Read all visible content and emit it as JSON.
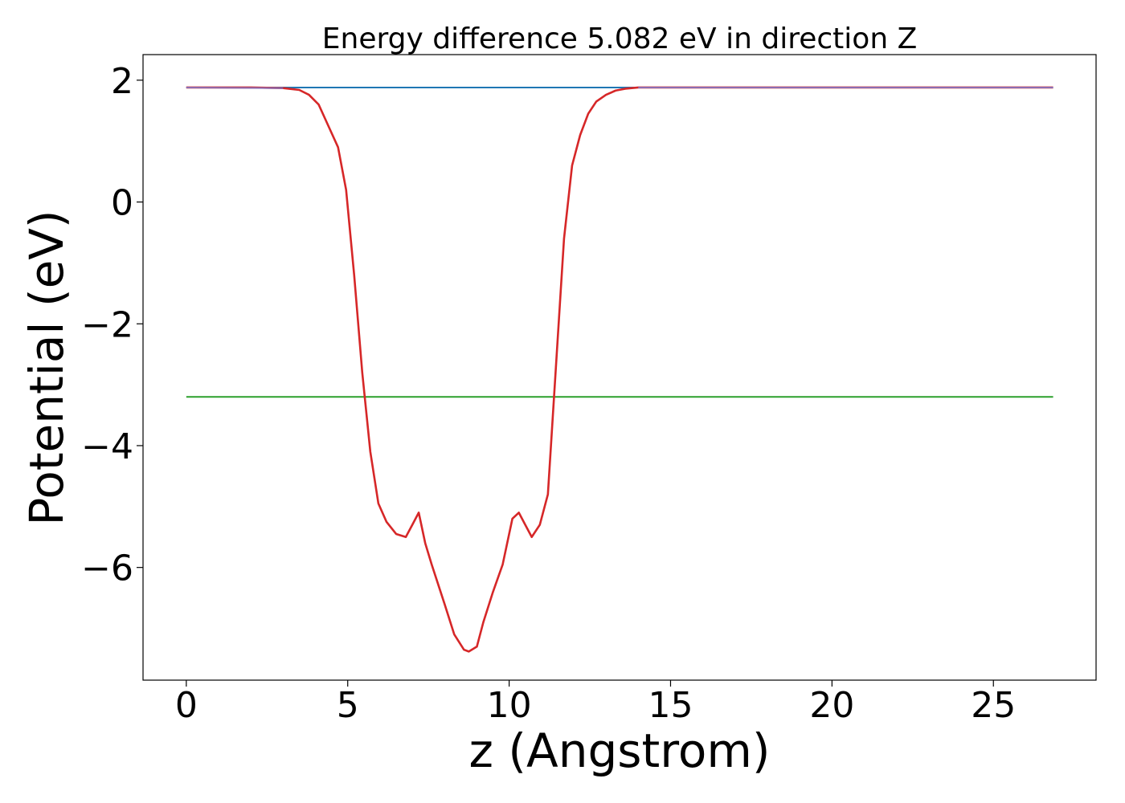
{
  "chart_data": {
    "type": "line",
    "title": "Energy difference 5.082 eV in direction Z",
    "xlabel": "z (Angstrom)",
    "ylabel": "Potential (eV)",
    "xlim": [
      -1.34,
      28.18
    ],
    "ylim": [
      -7.85,
      2.42
    ],
    "xticks": [
      0,
      5,
      10,
      15,
      20,
      25
    ],
    "xtick_labels": [
      "0",
      "5",
      "10",
      "15",
      "20",
      "25"
    ],
    "yticks": [
      2,
      0,
      -2,
      -4,
      -6
    ],
    "ytick_labels": [
      "2",
      "0",
      "−2",
      "−4",
      "−6"
    ],
    "grid": false,
    "series": [
      {
        "kind": "hline",
        "color": "#1f77b4",
        "x": [
          0,
          26.85
        ],
        "y": [
          1.88,
          1.88
        ]
      },
      {
        "kind": "hline",
        "color": "#2ca02c",
        "x": [
          0,
          26.85
        ],
        "y": [
          -3.2,
          -3.2
        ]
      },
      {
        "kind": "curve",
        "color": "#d62728",
        "x": [
          0,
          1,
          2,
          3,
          3.5,
          3.8,
          4.1,
          4.4,
          4.7,
          4.95,
          5.2,
          5.45,
          5.7,
          5.95,
          6.2,
          6.5,
          6.8,
          7.0,
          7.2,
          7.4,
          7.6,
          8.0,
          8.3,
          8.6,
          8.75,
          9.0,
          9.2,
          9.5,
          9.8,
          10.1,
          10.3,
          10.5,
          10.7,
          10.95,
          11.2,
          11.45,
          11.7,
          11.95,
          12.2,
          12.45,
          12.7,
          13.0,
          13.3,
          13.6,
          14.0,
          15,
          17,
          20,
          23,
          26.85
        ],
        "y": [
          1.88,
          1.88,
          1.88,
          1.87,
          1.84,
          1.76,
          1.6,
          1.25,
          0.9,
          0.2,
          -1.2,
          -2.8,
          -4.1,
          -4.95,
          -5.25,
          -5.45,
          -5.5,
          -5.3,
          -5.1,
          -5.6,
          -5.95,
          -6.6,
          -7.1,
          -7.35,
          -7.38,
          -7.3,
          -6.9,
          -6.4,
          -5.95,
          -5.2,
          -5.1,
          -5.3,
          -5.5,
          -5.3,
          -4.8,
          -2.7,
          -0.6,
          0.6,
          1.1,
          1.45,
          1.65,
          1.76,
          1.83,
          1.86,
          1.88,
          1.88,
          1.88,
          1.88,
          1.88,
          1.88
        ]
      },
      {
        "kind": "overlay",
        "color": "#8c6bb1",
        "x": [
          0,
          3
        ],
        "y": [
          1.88,
          1.87
        ]
      },
      {
        "kind": "overlay",
        "color": "#8c6bb1",
        "x": [
          14,
          26.85
        ],
        "y": [
          1.88,
          1.88
        ]
      }
    ]
  }
}
